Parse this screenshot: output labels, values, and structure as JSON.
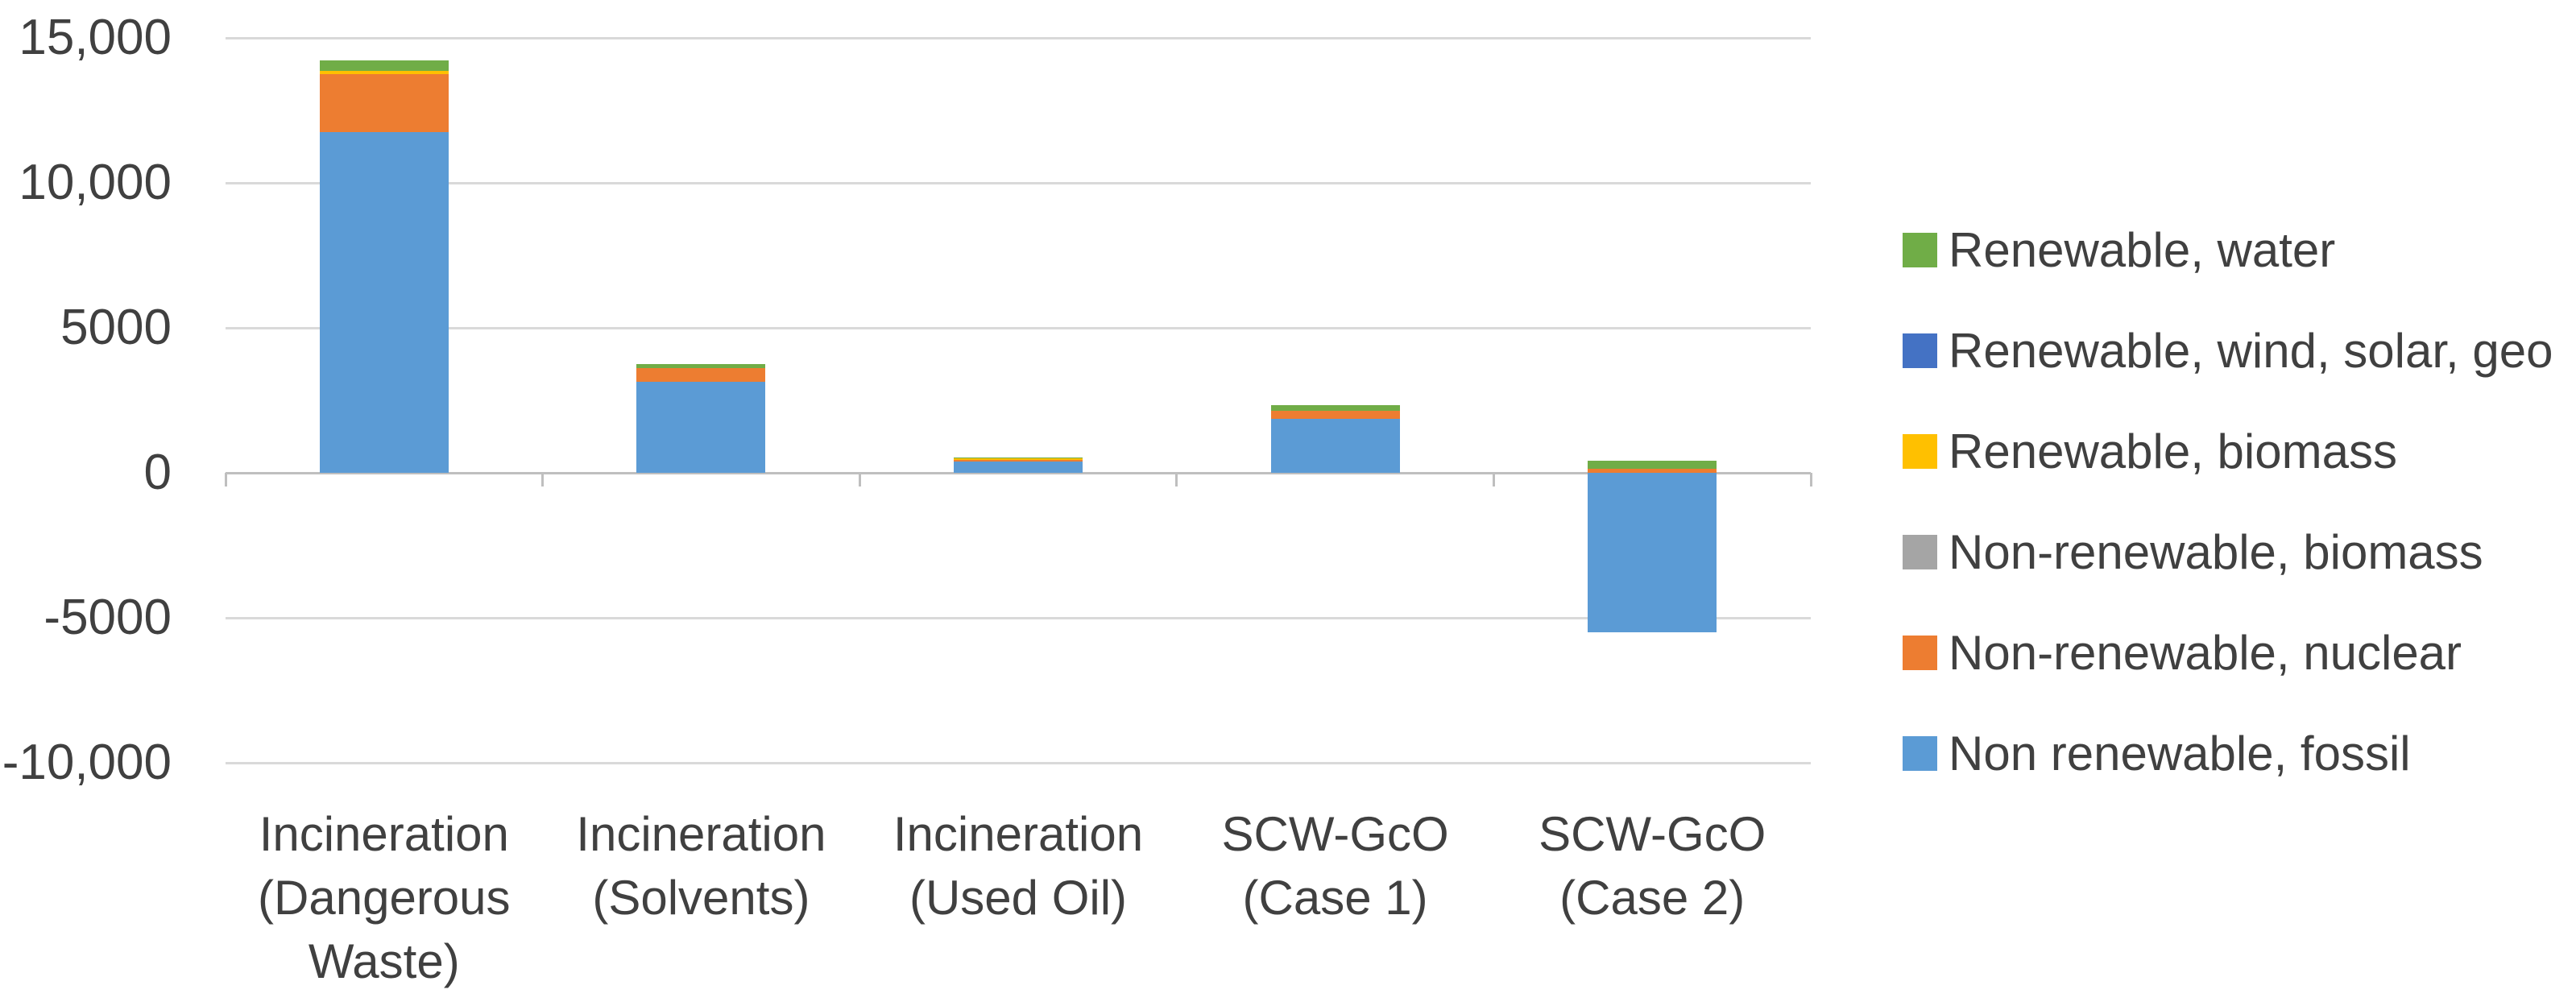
{
  "chart_data": {
    "type": "bar",
    "stacked": true,
    "title": "",
    "xlabel": "",
    "ylabel": "",
    "categories": [
      "Incineration (Dangerous Waste)",
      "Incineration (Solvents)",
      "Incineration (Used Oil)",
      "SCW-GcO (Case 1)",
      "SCW-GcO (Case 2)"
    ],
    "series": [
      {
        "name": "Non renewable, fossil",
        "color": "#5B9BD5",
        "values": [
          11750,
          3150,
          390,
          1860,
          -5500
        ]
      },
      {
        "name": "Non-renewable, nuclear",
        "color": "#ED7D31",
        "values": [
          2000,
          470,
          60,
          280,
          150
        ]
      },
      {
        "name": "Non-renewable, biomass",
        "color": "#A5A5A5",
        "values": [
          0,
          0,
          0,
          0,
          0
        ]
      },
      {
        "name": "Renewable, biomass",
        "color": "#FFC000",
        "values": [
          120,
          0,
          40,
          0,
          0
        ]
      },
      {
        "name": "Renewable, wind, solar, geo",
        "color": "#4472C4",
        "values": [
          0,
          0,
          0,
          0,
          0
        ]
      },
      {
        "name": "Renewable, water",
        "color": "#70AD47",
        "values": [
          350,
          140,
          40,
          200,
          270
        ]
      }
    ],
    "legend": {
      "position": "right",
      "items_top_to_bottom": [
        {
          "label": "Renewable, water",
          "color": "#70AD47"
        },
        {
          "label": "Renewable, wind, solar, geo",
          "color": "#4472C4"
        },
        {
          "label": "Renewable, biomass",
          "color": "#FFC000"
        },
        {
          "label": "Non-renewable, biomass",
          "color": "#A5A5A5"
        },
        {
          "label": "Non-renewable, nuclear",
          "color": "#ED7D31"
        },
        {
          "label": "Non renewable, fossil",
          "color": "#5B9BD5"
        }
      ]
    },
    "y_axis": {
      "min": -10000,
      "max": 15000,
      "step": 5000,
      "tick_labels_top_to_bottom": [
        "15,000",
        "10,000",
        "5000",
        "0",
        "-5000",
        "-10,000"
      ],
      "gridlines": true
    },
    "style_colors": {
      "gridline": "#D9D9D9",
      "axis_line": "#BFBFBF",
      "text": "#404040",
      "background": "#FFFFFF"
    }
  }
}
